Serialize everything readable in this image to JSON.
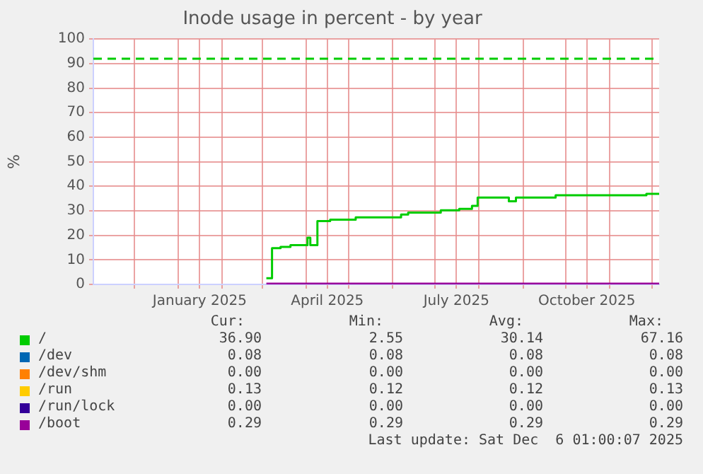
{
  "chart_data": {
    "type": "step",
    "title": "Inode usage in percent - by year",
    "ylabel": "%",
    "xlim": [
      "2024-11-02",
      "2025-12-06"
    ],
    "ylim": [
      0,
      100
    ],
    "yticks": [
      0,
      10,
      20,
      30,
      40,
      50,
      60,
      70,
      80,
      90,
      100
    ],
    "xticks": [
      {
        "value": "2024-12-01",
        "label": null
      },
      {
        "value": "2025-01-01",
        "label": null
      },
      {
        "value": "2025-01-16",
        "label": "January 2025"
      },
      {
        "value": "2025-02-01",
        "label": null
      },
      {
        "value": "2025-03-01",
        "label": null
      },
      {
        "value": "2025-04-01",
        "label": null
      },
      {
        "value": "2025-04-16",
        "label": "April 2025"
      },
      {
        "value": "2025-05-01",
        "label": null
      },
      {
        "value": "2025-06-01",
        "label": null
      },
      {
        "value": "2025-07-01",
        "label": null
      },
      {
        "value": "2025-07-16",
        "label": "July 2025"
      },
      {
        "value": "2025-08-01",
        "label": null
      },
      {
        "value": "2025-09-01",
        "label": null
      },
      {
        "value": "2025-10-01",
        "label": null
      },
      {
        "value": "2025-10-16",
        "label": "October 2025"
      },
      {
        "value": "2025-11-01",
        "label": null
      },
      {
        "value": "2025-12-01",
        "label": null
      }
    ],
    "grid": true,
    "legend": "bottom",
    "marker": "none",
    "ref_lines": [
      {
        "axis": "y",
        "value": 92,
        "color": "#00cc00",
        "line_style": "dashed"
      }
    ],
    "series": [
      {
        "name": "/",
        "color": "#00cc00",
        "x": [
          "2025-03-04",
          "2025-03-06",
          "2025-03-08",
          "2025-03-14",
          "2025-03-21",
          "2025-04-01",
          "2025-04-02",
          "2025-04-04",
          "2025-04-07",
          "2025-04-09",
          "2025-04-18",
          "2025-05-03",
          "2025-05-06",
          "2025-06-05",
          "2025-06-07",
          "2025-06-12",
          "2025-06-30",
          "2025-07-05",
          "2025-07-15",
          "2025-07-18",
          "2025-07-25",
          "2025-07-27",
          "2025-07-29",
          "2025-07-31",
          "2025-08-19",
          "2025-08-22",
          "2025-08-24",
          "2025-08-27",
          "2025-09-22",
          "2025-09-24",
          "2025-11-25",
          "2025-11-27",
          "2025-12-06"
        ],
        "values": [
          2.5,
          2.5,
          14.8,
          15.3,
          16,
          16,
          19,
          16,
          16,
          25.8,
          26.4,
          26.4,
          27.3,
          27.3,
          28.5,
          29.3,
          29.3,
          30.2,
          30.2,
          30.8,
          30.8,
          32,
          32,
          35.4,
          35.4,
          33.9,
          33.9,
          35.4,
          35.4,
          36.3,
          36.3,
          36.9,
          36.9
        ]
      },
      {
        "name": "/dev",
        "color": "#0066b3"
      },
      {
        "name": "/dev/shm",
        "color": "#ff8000"
      },
      {
        "name": "/run",
        "color": "#ffcc00"
      },
      {
        "name": "/run/lock",
        "color": "#330099"
      },
      {
        "name": "/boot",
        "color": "#990099",
        "x": [
          "2025-03-04",
          "2025-12-06"
        ],
        "values": [
          0.3,
          0.3
        ]
      }
    ],
    "annotations": [
      "Cur:",
      "Min:",
      "Avg:",
      "Max:",
      "36.90",
      "2.55",
      "30.14",
      "67.16",
      "0.08",
      "0.08",
      "0.08",
      "0.08",
      "0.00",
      "0.00",
      "0.00",
      "0.00",
      "0.13",
      "0.12",
      "0.12",
      "0.13",
      "0.00",
      "0.00",
      "0.00",
      "0.00",
      "0.29",
      "0.29",
      "0.29",
      "0.29",
      "Last update: Sat Dec  6 01:00:07 2025"
    ]
  }
}
